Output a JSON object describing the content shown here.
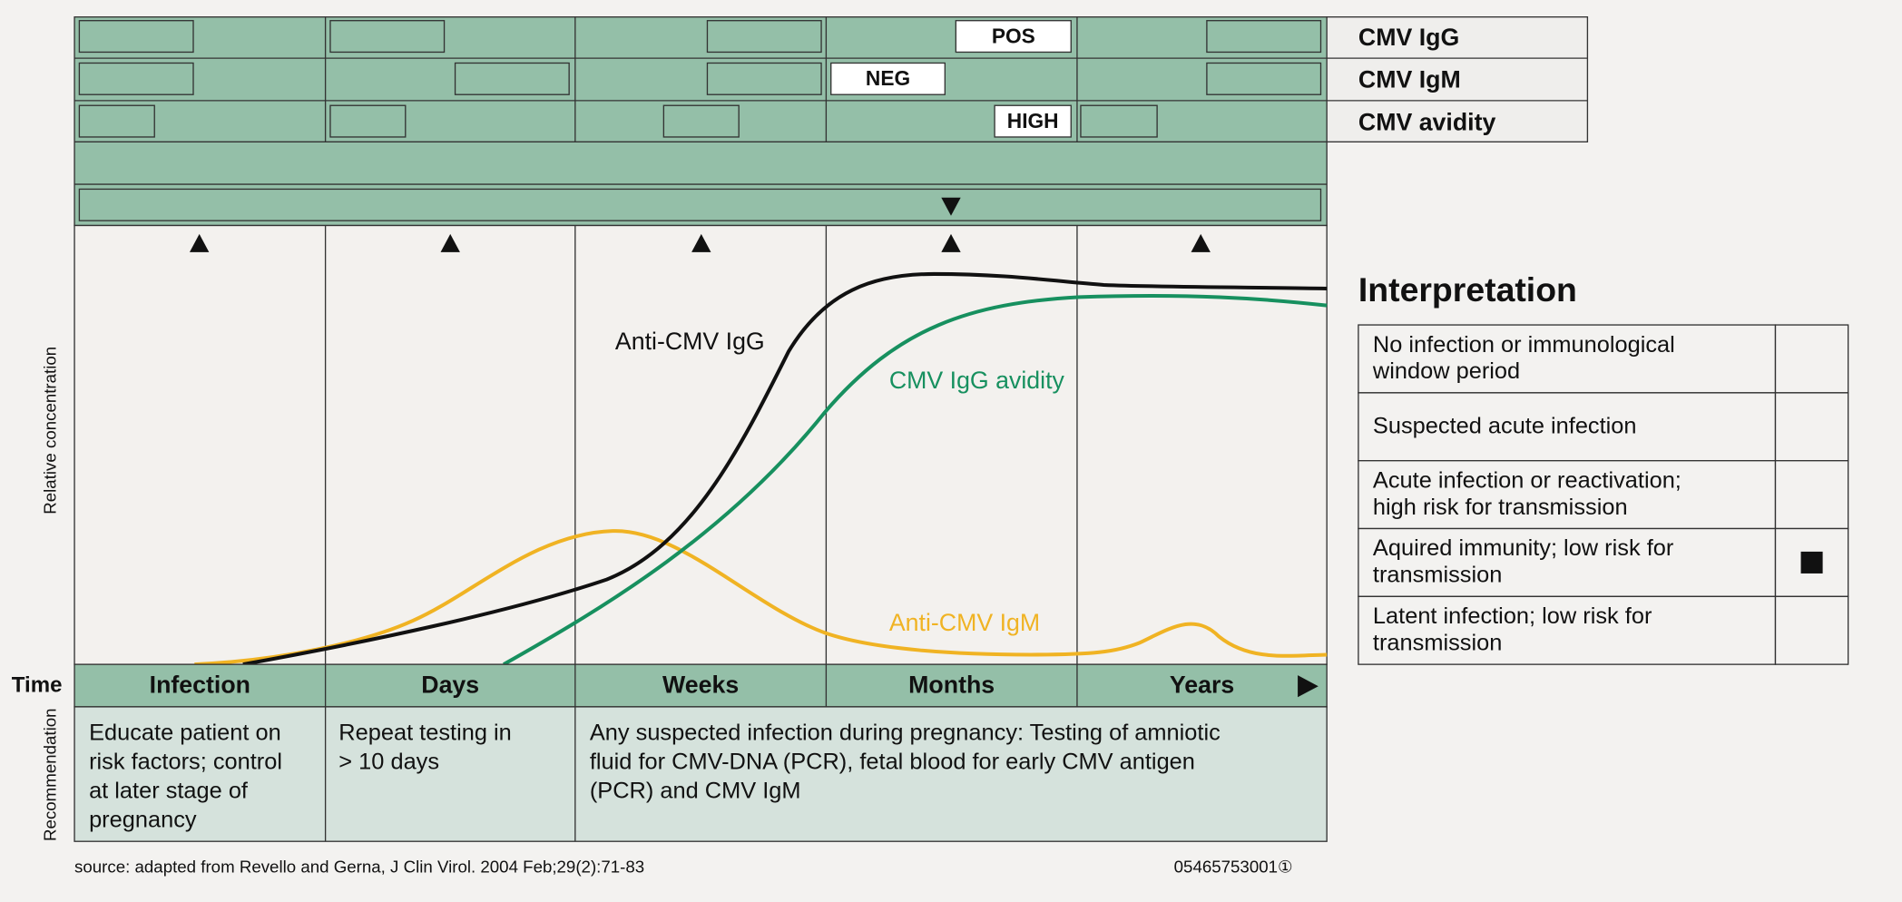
{
  "markers": [
    {
      "label": "CMV IgG",
      "result": "POS"
    },
    {
      "label": "CMV IgM",
      "result": "NEG"
    },
    {
      "label": "CMV avidity",
      "result": "HIGH"
    }
  ],
  "axis_label": "Relative concentration",
  "curve_labels": [
    "Anti-CMV IgG",
    "CMV IgG avidity",
    "Anti-CMV IgM"
  ],
  "time": {
    "label": "Time",
    "periods": [
      "Infection",
      "Days",
      "Weeks",
      "Months",
      "Years"
    ]
  },
  "recommendation": {
    "label": "Recommendation",
    "cells": [
      [
        "Educate patient on",
        "risk factors; control",
        "at later stage of",
        "pregnancy"
      ],
      [
        "Repeat testing in",
        "> 10 days"
      ],
      [
        "Any suspected infection during pregnancy: Testing of amniotic",
        "fluid for CMV-DNA (PCR), fetal blood for early CMV antigen",
        "(PCR) and CMV IgM"
      ]
    ]
  },
  "interpretation": {
    "title": "Interpretation",
    "rows": [
      [
        "No infection or immunological",
        "window period"
      ],
      [
        "Suspected acute infection"
      ],
      [
        "Acute infection or reactivation;",
        "high risk for transmission"
      ],
      [
        "Aquired immunity; low risk for",
        "transmission"
      ],
      [
        "Latent infection; low risk for",
        "transmission"
      ]
    ]
  },
  "source": "source: adapted from Revello and Gerna, J Clin Virol. 2004 Feb;29(2):71-83",
  "code": "05465753001①"
}
